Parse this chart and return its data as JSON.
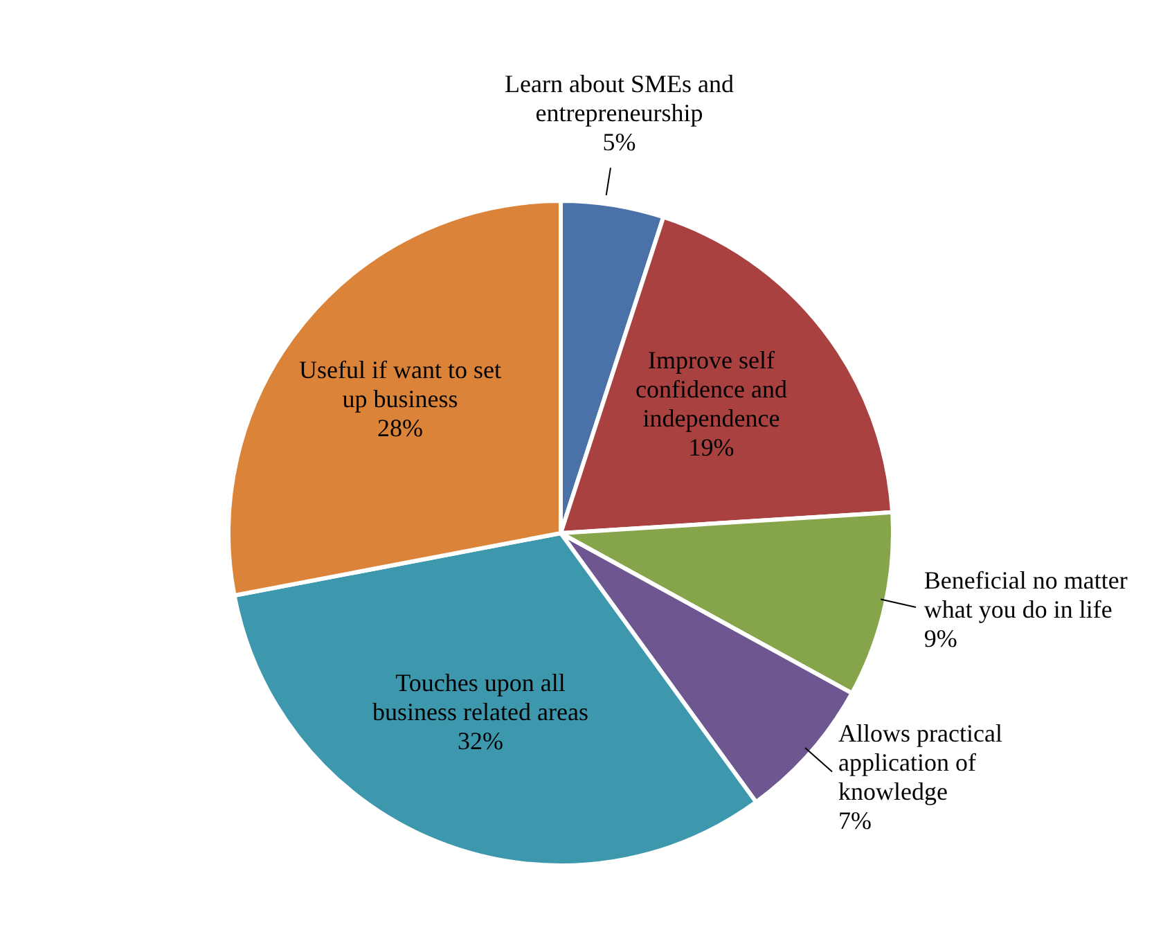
{
  "chart_data": {
    "type": "pie",
    "categories": [
      "Learn about SMEs and entrepreneurship",
      "Improve self confidence and independence",
      "Beneficial no matter what you do in life",
      "Allows practical application of knowledge",
      "Touches upon all business related areas",
      "Useful if want to set up business"
    ],
    "values": [
      5,
      19,
      9,
      7,
      32,
      28
    ],
    "value_labels": [
      "5%",
      "19%",
      "9%",
      "7%",
      "32%",
      "28%"
    ],
    "colors": [
      "#4a72a8",
      "#a8413f",
      "#86a44a",
      "#6e5690",
      "#3d98ae",
      "#db8439"
    ]
  }
}
